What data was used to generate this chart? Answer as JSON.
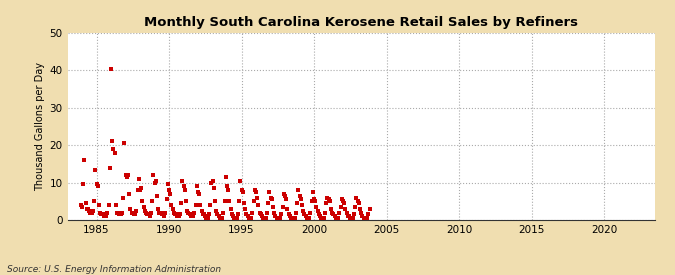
{
  "title": "Monthly South Carolina Kerosene Retail Sales by Refiners",
  "ylabel": "Thousand Gallons per Day",
  "source": "Source: U.S. Energy Information Administration",
  "background_color": "#f0deb0",
  "plot_background_color": "#ffffff",
  "marker_color": "#cc0000",
  "marker": "s",
  "markersize": 3,
  "xlim": [
    1983.0,
    2023.5
  ],
  "ylim": [
    0,
    50
  ],
  "yticks": [
    0,
    10,
    20,
    30,
    40,
    50
  ],
  "xticks": [
    1985,
    1990,
    1995,
    2000,
    2005,
    2010,
    2015,
    2020
  ],
  "data": [
    [
      1983.917,
      4.0
    ],
    [
      1984.0,
      3.5
    ],
    [
      1984.083,
      9.5
    ],
    [
      1984.167,
      16.0
    ],
    [
      1984.25,
      4.5
    ],
    [
      1984.333,
      3.0
    ],
    [
      1984.417,
      3.0
    ],
    [
      1984.5,
      2.5
    ],
    [
      1984.583,
      2.0
    ],
    [
      1984.667,
      2.0
    ],
    [
      1984.75,
      2.5
    ],
    [
      1984.833,
      5.0
    ],
    [
      1984.917,
      13.5
    ],
    [
      1985.0,
      9.5
    ],
    [
      1985.083,
      9.0
    ],
    [
      1985.167,
      4.0
    ],
    [
      1985.25,
      2.0
    ],
    [
      1985.333,
      1.5
    ],
    [
      1985.417,
      1.5
    ],
    [
      1985.5,
      1.0
    ],
    [
      1985.583,
      1.0
    ],
    [
      1985.667,
      1.0
    ],
    [
      1985.75,
      2.0
    ],
    [
      1985.833,
      4.0
    ],
    [
      1985.917,
      14.0
    ],
    [
      1986.0,
      40.5
    ],
    [
      1986.083,
      21.0
    ],
    [
      1986.167,
      19.0
    ],
    [
      1986.25,
      18.0
    ],
    [
      1986.333,
      4.0
    ],
    [
      1986.417,
      2.0
    ],
    [
      1986.5,
      2.0
    ],
    [
      1986.583,
      1.5
    ],
    [
      1986.667,
      1.5
    ],
    [
      1986.75,
      2.0
    ],
    [
      1986.833,
      6.0
    ],
    [
      1986.917,
      20.5
    ],
    [
      1987.0,
      12.0
    ],
    [
      1987.083,
      11.5
    ],
    [
      1987.167,
      12.0
    ],
    [
      1987.25,
      7.0
    ],
    [
      1987.333,
      3.0
    ],
    [
      1987.417,
      2.0
    ],
    [
      1987.5,
      2.0
    ],
    [
      1987.583,
      1.5
    ],
    [
      1987.667,
      1.5
    ],
    [
      1987.75,
      2.5
    ],
    [
      1987.833,
      8.0
    ],
    [
      1987.917,
      11.0
    ],
    [
      1988.0,
      8.0
    ],
    [
      1988.083,
      8.5
    ],
    [
      1988.167,
      5.0
    ],
    [
      1988.25,
      3.5
    ],
    [
      1988.333,
      2.5
    ],
    [
      1988.417,
      2.0
    ],
    [
      1988.5,
      1.5
    ],
    [
      1988.583,
      1.5
    ],
    [
      1988.667,
      1.0
    ],
    [
      1988.75,
      2.0
    ],
    [
      1988.833,
      5.0
    ],
    [
      1988.917,
      12.0
    ],
    [
      1989.0,
      10.0
    ],
    [
      1989.083,
      10.5
    ],
    [
      1989.167,
      6.5
    ],
    [
      1989.25,
      3.0
    ],
    [
      1989.333,
      2.0
    ],
    [
      1989.417,
      2.0
    ],
    [
      1989.5,
      1.5
    ],
    [
      1989.583,
      1.5
    ],
    [
      1989.667,
      1.0
    ],
    [
      1989.75,
      2.0
    ],
    [
      1989.833,
      5.5
    ],
    [
      1989.917,
      9.5
    ],
    [
      1990.0,
      8.0
    ],
    [
      1990.083,
      7.0
    ],
    [
      1990.167,
      4.0
    ],
    [
      1990.25,
      3.0
    ],
    [
      1990.333,
      2.0
    ],
    [
      1990.417,
      1.5
    ],
    [
      1990.5,
      1.5
    ],
    [
      1990.583,
      1.0
    ],
    [
      1990.667,
      1.0
    ],
    [
      1990.75,
      1.5
    ],
    [
      1990.833,
      4.5
    ],
    [
      1990.917,
      10.5
    ],
    [
      1991.0,
      9.0
    ],
    [
      1991.083,
      8.0
    ],
    [
      1991.167,
      5.0
    ],
    [
      1991.25,
      2.5
    ],
    [
      1991.333,
      2.0
    ],
    [
      1991.417,
      1.5
    ],
    [
      1991.5,
      1.0
    ],
    [
      1991.583,
      1.0
    ],
    [
      1991.667,
      1.0
    ],
    [
      1991.75,
      2.0
    ],
    [
      1991.833,
      4.0
    ],
    [
      1991.917,
      9.0
    ],
    [
      1992.0,
      7.5
    ],
    [
      1992.083,
      7.0
    ],
    [
      1992.167,
      4.0
    ],
    [
      1992.25,
      2.5
    ],
    [
      1992.333,
      1.5
    ],
    [
      1992.417,
      1.5
    ],
    [
      1992.5,
      1.0
    ],
    [
      1992.583,
      0.5
    ],
    [
      1992.667,
      0.5
    ],
    [
      1992.75,
      1.5
    ],
    [
      1992.833,
      4.0
    ],
    [
      1992.917,
      10.0
    ],
    [
      1993.0,
      10.5
    ],
    [
      1993.083,
      8.5
    ],
    [
      1993.167,
      5.0
    ],
    [
      1993.25,
      2.5
    ],
    [
      1993.333,
      1.5
    ],
    [
      1993.417,
      1.0
    ],
    [
      1993.5,
      0.5
    ],
    [
      1993.583,
      0.5
    ],
    [
      1993.667,
      0.5
    ],
    [
      1993.75,
      2.0
    ],
    [
      1993.833,
      5.0
    ],
    [
      1993.917,
      11.5
    ],
    [
      1994.0,
      9.0
    ],
    [
      1994.083,
      8.0
    ],
    [
      1994.167,
      5.0
    ],
    [
      1994.25,
      3.0
    ],
    [
      1994.333,
      1.5
    ],
    [
      1994.417,
      1.0
    ],
    [
      1994.5,
      0.5
    ],
    [
      1994.583,
      0.5
    ],
    [
      1994.667,
      0.5
    ],
    [
      1994.75,
      1.5
    ],
    [
      1994.833,
      5.0
    ],
    [
      1994.917,
      10.5
    ],
    [
      1995.0,
      8.0
    ],
    [
      1995.083,
      7.5
    ],
    [
      1995.167,
      4.5
    ],
    [
      1995.25,
      3.0
    ],
    [
      1995.333,
      1.5
    ],
    [
      1995.417,
      1.0
    ],
    [
      1995.5,
      0.5
    ],
    [
      1995.583,
      0.5
    ],
    [
      1995.667,
      0.5
    ],
    [
      1995.75,
      2.0
    ],
    [
      1995.833,
      5.0
    ],
    [
      1995.917,
      8.0
    ],
    [
      1996.0,
      7.5
    ],
    [
      1996.083,
      6.0
    ],
    [
      1996.167,
      4.0
    ],
    [
      1996.25,
      2.0
    ],
    [
      1996.333,
      1.5
    ],
    [
      1996.417,
      1.0
    ],
    [
      1996.5,
      0.5
    ],
    [
      1996.583,
      0.5
    ],
    [
      1996.667,
      0.5
    ],
    [
      1996.75,
      2.0
    ],
    [
      1996.833,
      4.5
    ],
    [
      1996.917,
      7.5
    ],
    [
      1997.0,
      6.0
    ],
    [
      1997.083,
      5.5
    ],
    [
      1997.167,
      3.5
    ],
    [
      1997.25,
      2.0
    ],
    [
      1997.333,
      1.0
    ],
    [
      1997.417,
      0.5
    ],
    [
      1997.5,
      0.5
    ],
    [
      1997.583,
      0.5
    ],
    [
      1997.667,
      0.5
    ],
    [
      1997.75,
      1.5
    ],
    [
      1997.833,
      3.5
    ],
    [
      1997.917,
      7.0
    ],
    [
      1998.0,
      6.5
    ],
    [
      1998.083,
      5.5
    ],
    [
      1998.167,
      3.0
    ],
    [
      1998.25,
      1.5
    ],
    [
      1998.333,
      1.0
    ],
    [
      1998.417,
      0.5
    ],
    [
      1998.5,
      0.5
    ],
    [
      1998.583,
      0.5
    ],
    [
      1998.667,
      0.5
    ],
    [
      1998.75,
      2.0
    ],
    [
      1998.833,
      4.5
    ],
    [
      1998.917,
      8.0
    ],
    [
      1999.0,
      6.5
    ],
    [
      1999.083,
      5.5
    ],
    [
      1999.167,
      4.0
    ],
    [
      1999.25,
      2.5
    ],
    [
      1999.333,
      1.5
    ],
    [
      1999.417,
      1.0
    ],
    [
      1999.5,
      0.5
    ],
    [
      1999.583,
      0.5
    ],
    [
      1999.667,
      0.5
    ],
    [
      1999.75,
      2.0
    ],
    [
      1999.833,
      5.0
    ],
    [
      1999.917,
      7.5
    ],
    [
      2000.0,
      5.5
    ],
    [
      2000.083,
      5.0
    ],
    [
      2000.167,
      3.5
    ],
    [
      2000.25,
      2.5
    ],
    [
      2000.333,
      1.5
    ],
    [
      2000.417,
      1.0
    ],
    [
      2000.5,
      0.5
    ],
    [
      2000.583,
      0.5
    ],
    [
      2000.667,
      0.5
    ],
    [
      2000.75,
      2.0
    ],
    [
      2000.833,
      4.5
    ],
    [
      2000.917,
      6.0
    ],
    [
      2001.0,
      5.5
    ],
    [
      2001.083,
      5.0
    ],
    [
      2001.167,
      3.0
    ],
    [
      2001.25,
      2.0
    ],
    [
      2001.333,
      1.5
    ],
    [
      2001.417,
      1.0
    ],
    [
      2001.5,
      0.5
    ],
    [
      2001.583,
      0.5
    ],
    [
      2001.667,
      0.5
    ],
    [
      2001.75,
      2.0
    ],
    [
      2001.833,
      3.5
    ],
    [
      2001.917,
      5.5
    ],
    [
      2002.0,
      5.0
    ],
    [
      2002.083,
      4.5
    ],
    [
      2002.167,
      3.0
    ],
    [
      2002.25,
      2.0
    ],
    [
      2002.333,
      1.0
    ],
    [
      2002.417,
      1.0
    ],
    [
      2002.5,
      0.5
    ],
    [
      2002.583,
      0.5
    ],
    [
      2002.667,
      0.5
    ],
    [
      2002.75,
      1.5
    ],
    [
      2002.833,
      3.5
    ],
    [
      2002.917,
      6.0
    ],
    [
      2003.0,
      5.0
    ],
    [
      2003.083,
      4.5
    ],
    [
      2003.167,
      3.0
    ],
    [
      2003.25,
      2.0
    ],
    [
      2003.333,
      1.0
    ],
    [
      2003.417,
      0.5
    ],
    [
      2003.5,
      0.5
    ],
    [
      2003.583,
      0.5
    ],
    [
      2003.667,
      0.5
    ],
    [
      2003.75,
      1.5
    ],
    [
      2003.833,
      3.0
    ]
  ]
}
